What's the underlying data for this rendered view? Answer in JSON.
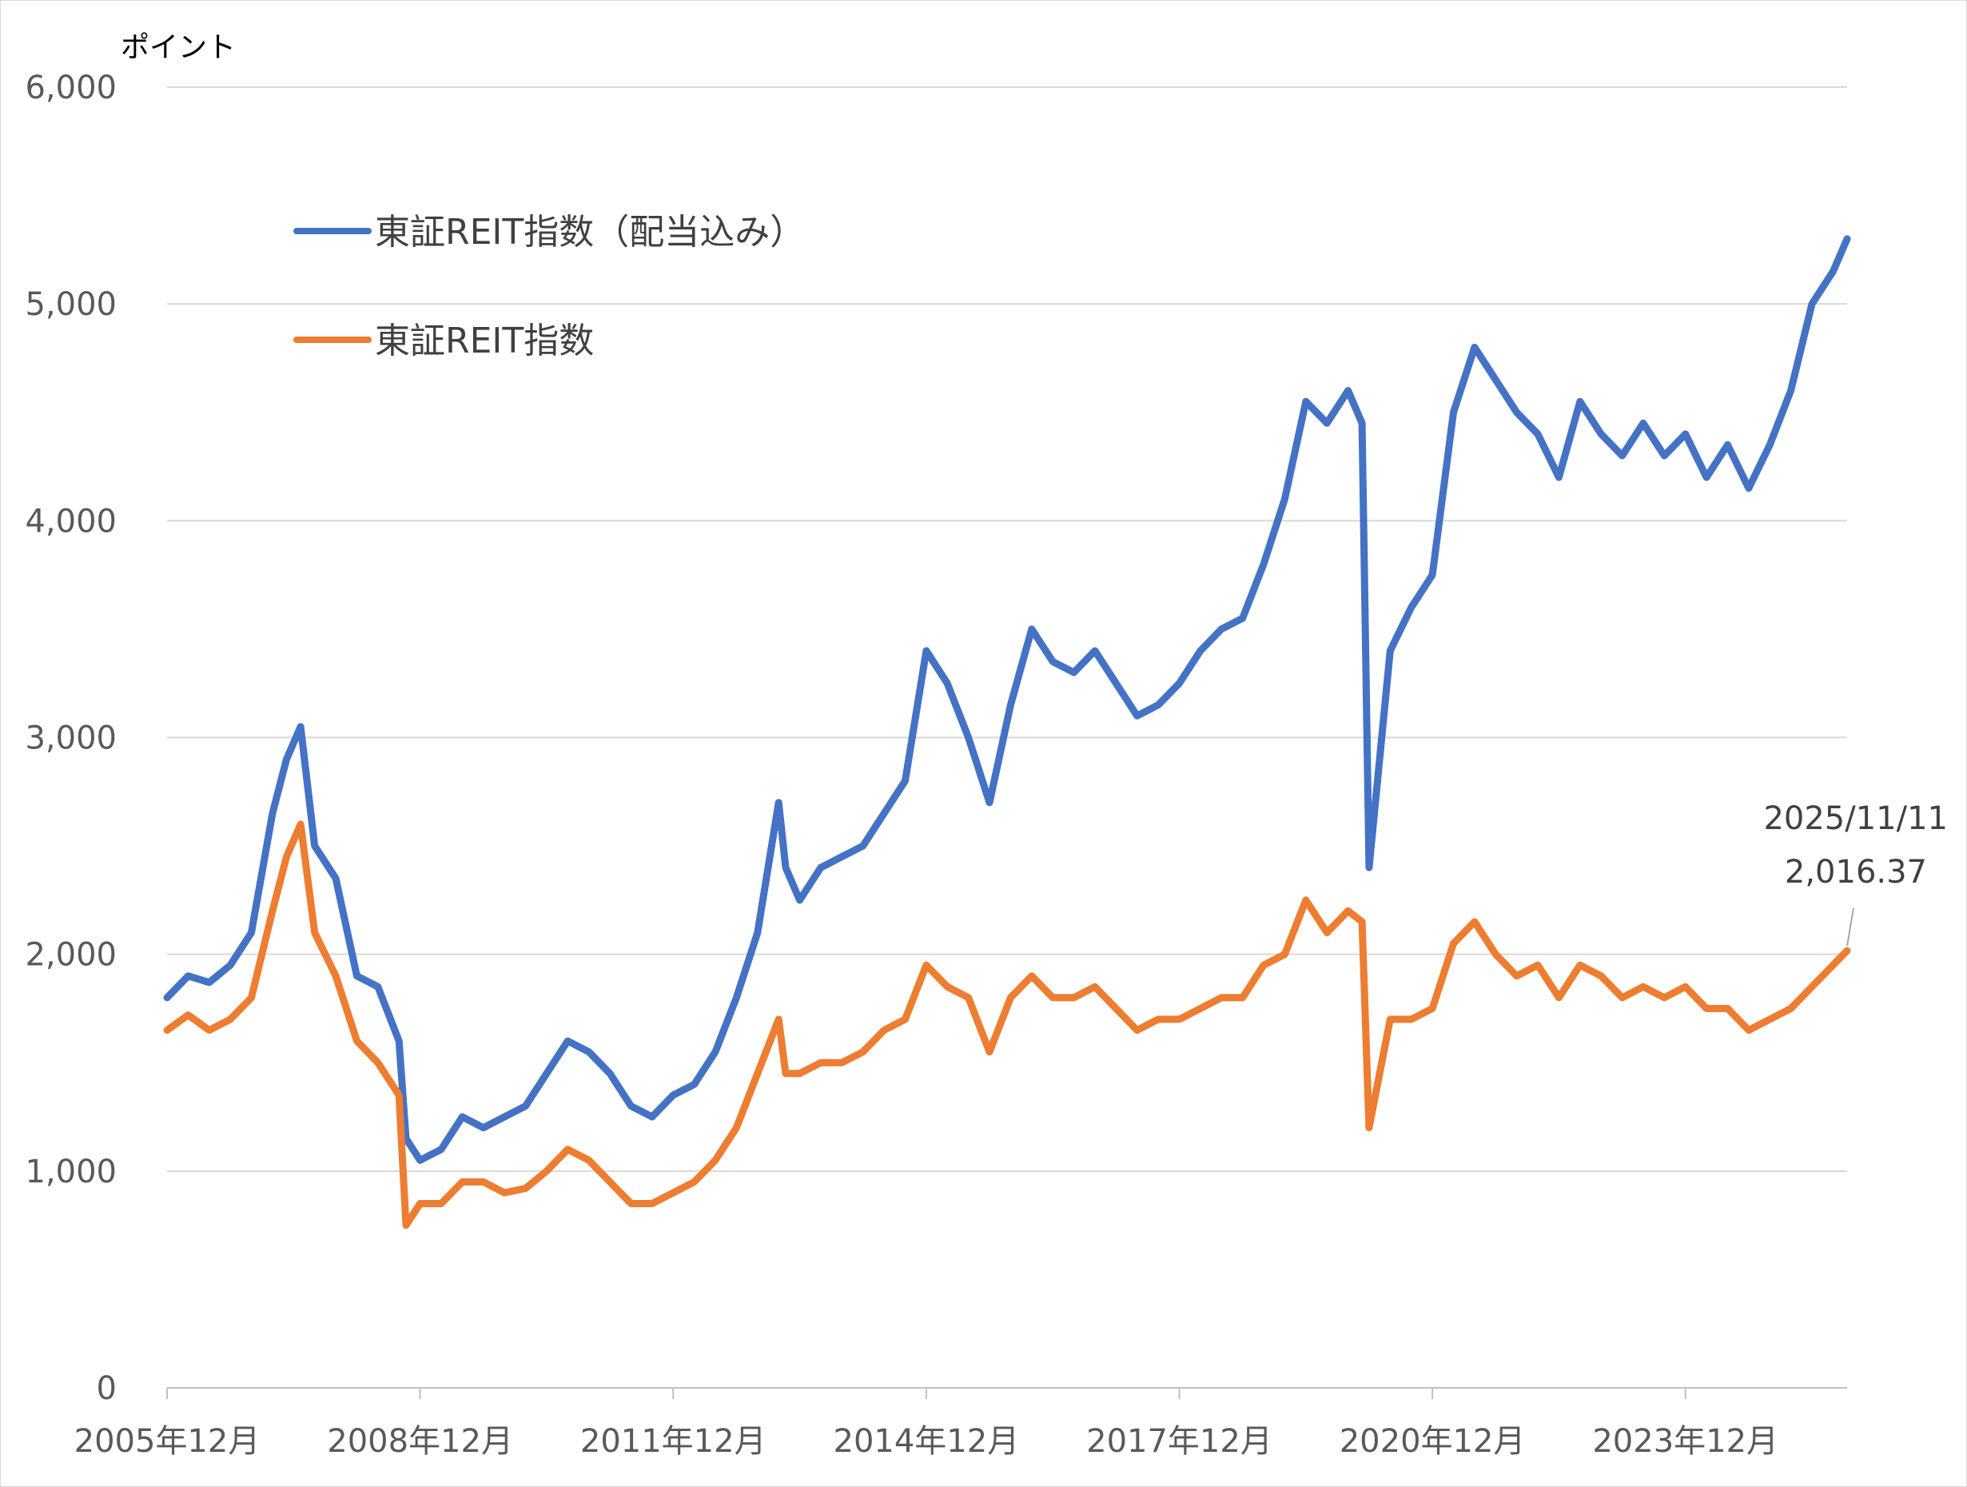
{
  "chart_data": {
    "type": "line",
    "title": "",
    "xlabel": "",
    "ylabel": "ポイント",
    "ylim": [
      0,
      6000
    ],
    "xlim": [
      "2005-12",
      "2025-11"
    ],
    "grid": "horizontal",
    "legend_position": "top-left",
    "y_ticks": [
      {
        "value": 0,
        "label": "0"
      },
      {
        "value": 1000,
        "label": "1,000"
      },
      {
        "value": 2000,
        "label": "2,000"
      },
      {
        "value": 3000,
        "label": "3,000"
      },
      {
        "value": 4000,
        "label": "4,000"
      },
      {
        "value": 5000,
        "label": "5,000"
      },
      {
        "value": 6000,
        "label": "6,000"
      }
    ],
    "x_ticks": [
      {
        "value": "2005-12",
        "label": "2005年12月"
      },
      {
        "value": "2008-12",
        "label": "2008年12月"
      },
      {
        "value": "2011-12",
        "label": "2011年12月"
      },
      {
        "value": "2014-12",
        "label": "2014年12月"
      },
      {
        "value": "2017-12",
        "label": "2017年12月"
      },
      {
        "value": "2020-12",
        "label": "2020年12月"
      },
      {
        "value": "2023-12",
        "label": "2023年12月"
      }
    ],
    "series": [
      {
        "name": "東証REIT指数（配当込み）",
        "color": "#4472c4",
        "x": [
          "2005-12",
          "2006-03",
          "2006-06",
          "2006-09",
          "2006-12",
          "2007-03",
          "2007-05",
          "2007-07",
          "2007-09",
          "2007-12",
          "2008-03",
          "2008-06",
          "2008-09",
          "2008-10",
          "2008-12",
          "2009-03",
          "2009-06",
          "2009-09",
          "2009-12",
          "2010-03",
          "2010-06",
          "2010-09",
          "2010-12",
          "2011-03",
          "2011-06",
          "2011-09",
          "2011-12",
          "2012-03",
          "2012-06",
          "2012-09",
          "2012-12",
          "2013-03",
          "2013-04",
          "2013-06",
          "2013-09",
          "2013-12",
          "2014-03",
          "2014-06",
          "2014-09",
          "2014-12",
          "2015-03",
          "2015-06",
          "2015-09",
          "2015-12",
          "2016-03",
          "2016-06",
          "2016-09",
          "2016-12",
          "2017-03",
          "2017-06",
          "2017-09",
          "2017-12",
          "2018-03",
          "2018-06",
          "2018-09",
          "2018-12",
          "2019-03",
          "2019-06",
          "2019-09",
          "2019-12",
          "2020-02",
          "2020-03",
          "2020-06",
          "2020-09",
          "2020-12",
          "2021-03",
          "2021-06",
          "2021-09",
          "2021-12",
          "2022-03",
          "2022-06",
          "2022-09",
          "2022-12",
          "2023-03",
          "2023-06",
          "2023-09",
          "2023-12",
          "2024-03",
          "2024-06",
          "2024-09",
          "2024-12",
          "2025-03",
          "2025-06",
          "2025-09",
          "2025-11"
        ],
        "values": [
          1800,
          1900,
          1870,
          1950,
          2100,
          2650,
          2900,
          3050,
          2500,
          2350,
          1900,
          1850,
          1600,
          1150,
          1050,
          1100,
          1250,
          1200,
          1250,
          1300,
          1450,
          1600,
          1550,
          1450,
          1300,
          1250,
          1350,
          1400,
          1550,
          1800,
          2100,
          2700,
          2400,
          2250,
          2400,
          2450,
          2500,
          2650,
          2800,
          3400,
          3250,
          3000,
          2700,
          3150,
          3500,
          3350,
          3300,
          3400,
          3250,
          3100,
          3150,
          3250,
          3400,
          3500,
          3550,
          3800,
          4100,
          4550,
          4450,
          4600,
          4450,
          2400,
          3400,
          3600,
          3750,
          4500,
          4800,
          4650,
          4500,
          4400,
          4200,
          4550,
          4400,
          4300,
          4450,
          4300,
          4400,
          4200,
          4350,
          4150,
          4350,
          4600,
          5000,
          5150,
          5300
        ]
      },
      {
        "name": "東証REIT指数",
        "color": "#ed7d31",
        "x": [
          "2005-12",
          "2006-03",
          "2006-06",
          "2006-09",
          "2006-12",
          "2007-03",
          "2007-05",
          "2007-07",
          "2007-09",
          "2007-12",
          "2008-03",
          "2008-06",
          "2008-09",
          "2008-10",
          "2008-12",
          "2009-03",
          "2009-06",
          "2009-09",
          "2009-12",
          "2010-03",
          "2010-06",
          "2010-09",
          "2010-12",
          "2011-03",
          "2011-06",
          "2011-09",
          "2011-12",
          "2012-03",
          "2012-06",
          "2012-09",
          "2012-12",
          "2013-03",
          "2013-04",
          "2013-06",
          "2013-09",
          "2013-12",
          "2014-03",
          "2014-06",
          "2014-09",
          "2014-12",
          "2015-03",
          "2015-06",
          "2015-09",
          "2015-12",
          "2016-03",
          "2016-06",
          "2016-09",
          "2016-12",
          "2017-03",
          "2017-06",
          "2017-09",
          "2017-12",
          "2018-03",
          "2018-06",
          "2018-09",
          "2018-12",
          "2019-03",
          "2019-06",
          "2019-09",
          "2019-12",
          "2020-02",
          "2020-03",
          "2020-06",
          "2020-09",
          "2020-12",
          "2021-03",
          "2021-06",
          "2021-09",
          "2021-12",
          "2022-03",
          "2022-06",
          "2022-09",
          "2022-12",
          "2023-03",
          "2023-06",
          "2023-09",
          "2023-12",
          "2024-03",
          "2024-06",
          "2024-09",
          "2024-12",
          "2025-03",
          "2025-06",
          "2025-09",
          "2025-11"
        ],
        "values": [
          1650,
          1720,
          1650,
          1700,
          1800,
          2200,
          2450,
          2600,
          2100,
          1900,
          1600,
          1500,
          1350,
          750,
          850,
          850,
          950,
          950,
          900,
          920,
          1000,
          1100,
          1050,
          950,
          850,
          850,
          900,
          950,
          1050,
          1200,
          1450,
          1700,
          1450,
          1450,
          1500,
          1500,
          1550,
          1650,
          1700,
          1950,
          1850,
          1800,
          1550,
          1800,
          1900,
          1800,
          1800,
          1850,
          1750,
          1650,
          1700,
          1700,
          1750,
          1800,
          1800,
          1950,
          2000,
          2250,
          2100,
          2200,
          2150,
          1200,
          1700,
          1700,
          1750,
          2050,
          2150,
          2000,
          1900,
          1950,
          1800,
          1950,
          1900,
          1800,
          1850,
          1800,
          1850,
          1750,
          1750,
          1650,
          1700,
          1750,
          1850,
          1950,
          2016.37
        ]
      }
    ],
    "annotation": {
      "date_label": "2025/11/11",
      "value_label": "2,016.37",
      "x": "2025-11",
      "y": 2016.37
    }
  }
}
